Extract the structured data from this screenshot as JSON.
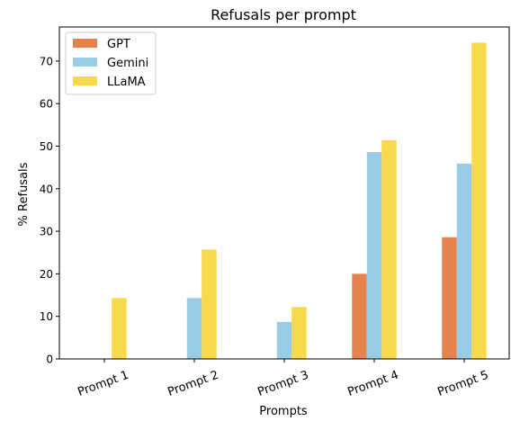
{
  "chart_data": {
    "type": "bar",
    "title": "Refusals per prompt",
    "xlabel": "Prompts",
    "ylabel": "% Refusals",
    "categories": [
      "Prompt 1",
      "Prompt 2",
      "Prompt 3",
      "Prompt 4",
      "Prompt 5"
    ],
    "series": [
      {
        "name": "GPT",
        "color": "#e5834f",
        "values": [
          0,
          0,
          0,
          20.0,
          28.6
        ]
      },
      {
        "name": "Gemini",
        "color": "#99cbe6",
        "values": [
          0,
          14.3,
          8.7,
          48.6,
          45.9
        ]
      },
      {
        "name": "LLaMA",
        "color": "#f7d94c",
        "values": [
          14.3,
          25.7,
          12.2,
          51.4,
          74.3
        ]
      }
    ],
    "ylim": [
      0,
      78
    ],
    "yticks": [
      0,
      10,
      20,
      30,
      40,
      50,
      60,
      70
    ],
    "xtick_rotation": "slanted",
    "legend_position": "top-left",
    "grid": false
  }
}
